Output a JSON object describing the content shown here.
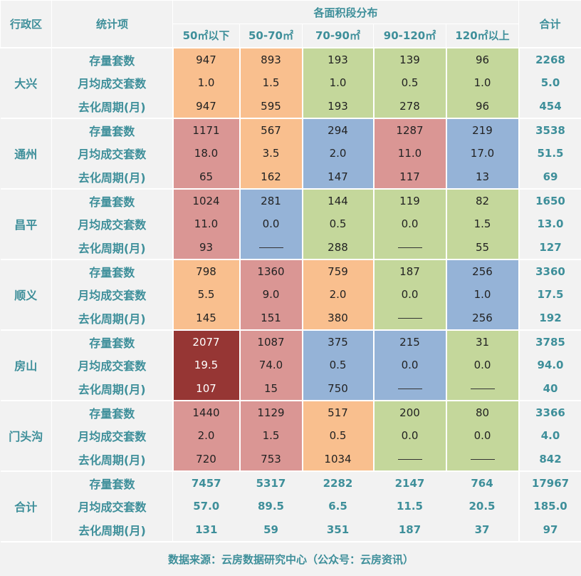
{
  "header": {
    "district_label": "行政区",
    "item_label": "统计项",
    "dist_label": "各面积段分布",
    "total_label": "合计",
    "ranges": [
      "50㎡以下",
      "50-70㎡",
      "70-90㎡",
      "90-120㎡",
      "120㎡以上"
    ]
  },
  "colors": {
    "o": "#f9bf8e",
    "g": "#c4d79b",
    "p": "#da9694",
    "b": "#95b3d7",
    "d": "#963634"
  },
  "districts": [
    {
      "name": "大兴",
      "rows": [
        {
          "label": "存量套数",
          "values": [
            "947",
            "893",
            "193",
            "139",
            "96"
          ],
          "total": "2268"
        },
        {
          "label": "月均成交套数",
          "values": [
            "1.0",
            "1.5",
            "1.0",
            "0.5",
            "1.0"
          ],
          "total": "5.0"
        },
        {
          "label": "去化周期(月)",
          "values": [
            "947",
            "595",
            "193",
            "278",
            "96"
          ],
          "total": "454"
        }
      ],
      "colors": [
        "o",
        "o",
        "g",
        "g",
        "g"
      ]
    },
    {
      "name": "通州",
      "rows": [
        {
          "label": "存量套数",
          "values": [
            "1171",
            "567",
            "294",
            "1287",
            "219"
          ],
          "total": "3538"
        },
        {
          "label": "月均成交套数",
          "values": [
            "18.0",
            "3.5",
            "2.0",
            "11.0",
            "17.0"
          ],
          "total": "51.5"
        },
        {
          "label": "去化周期(月)",
          "values": [
            "65",
            "162",
            "147",
            "117",
            "13"
          ],
          "total": "69"
        }
      ],
      "colors": [
        "p",
        "o",
        "b",
        "p",
        "b"
      ]
    },
    {
      "name": "昌平",
      "rows": [
        {
          "label": "存量套数",
          "values": [
            "1024",
            "281",
            "144",
            "119",
            "82"
          ],
          "total": "1650"
        },
        {
          "label": "月均成交套数",
          "values": [
            "11.0",
            "0.0",
            "0.5",
            "0.0",
            "1.5"
          ],
          "total": "13.0"
        },
        {
          "label": "去化周期(月)",
          "values": [
            "93",
            "—",
            "288",
            "—",
            "55"
          ],
          "total": "127"
        }
      ],
      "colors": [
        "p",
        "b",
        "g",
        "g",
        "g"
      ]
    },
    {
      "name": "顺义",
      "rows": [
        {
          "label": "存量套数",
          "values": [
            "798",
            "1360",
            "759",
            "187",
            "256"
          ],
          "total": "3360"
        },
        {
          "label": "月均成交套数",
          "values": [
            "5.5",
            "9.0",
            "2.0",
            "0.0",
            "1.0"
          ],
          "total": "17.5"
        },
        {
          "label": "去化周期(月)",
          "values": [
            "145",
            "151",
            "380",
            "—",
            "256"
          ],
          "total": "192"
        }
      ],
      "colors": [
        "o",
        "p",
        "o",
        "g",
        "b"
      ]
    },
    {
      "name": "房山",
      "rows": [
        {
          "label": "存量套数",
          "values": [
            "2077",
            "1087",
            "375",
            "215",
            "31"
          ],
          "total": "3785"
        },
        {
          "label": "月均成交套数",
          "values": [
            "19.5",
            "74.0",
            "0.5",
            "0.0",
            "0.0"
          ],
          "total": "94.0"
        },
        {
          "label": "去化周期(月)",
          "values": [
            "107",
            "15",
            "750",
            "—",
            "—"
          ],
          "total": "40"
        }
      ],
      "colors": [
        "d",
        "p",
        "b",
        "b",
        "g"
      ]
    },
    {
      "name": "门头沟",
      "rows": [
        {
          "label": "存量套数",
          "values": [
            "1440",
            "1129",
            "517",
            "200",
            "80"
          ],
          "total": "3366"
        },
        {
          "label": "月均成交套数",
          "values": [
            "2.0",
            "1.5",
            "0.5",
            "0.0",
            "0.0"
          ],
          "total": "4.0"
        },
        {
          "label": "去化周期(月)",
          "values": [
            "720",
            "753",
            "1034",
            "—",
            "—"
          ],
          "total": "842"
        }
      ],
      "colors": [
        "p",
        "p",
        "o",
        "g",
        "g"
      ]
    }
  ],
  "summary": {
    "name": "合计",
    "rows": [
      {
        "label": "存量套数",
        "values": [
          "7457",
          "5317",
          "2282",
          "2147",
          "764"
        ],
        "total": "17967"
      },
      {
        "label": "月均成交套数",
        "values": [
          "57.0",
          "89.5",
          "6.5",
          "11.5",
          "20.5"
        ],
        "total": "185.0"
      },
      {
        "label": "去化周期(月)",
        "values": [
          "131",
          "59",
          "351",
          "187",
          "37"
        ],
        "total": "97"
      }
    ]
  },
  "footer": "数据来源：云房数据研究中心（公众号：云房资讯）"
}
